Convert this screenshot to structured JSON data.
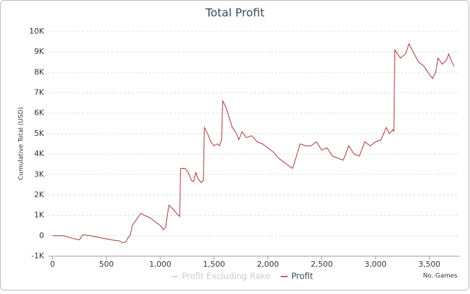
{
  "chart_data": {
    "type": "line",
    "title": "Total Profit",
    "ylabel": "Cumulative Total (USD)",
    "xlabel": "No. Games",
    "xlim": [
      -40,
      3780
    ],
    "ylim": [
      -1000,
      10000
    ],
    "xticks": [
      0,
      500,
      {
        "value": 1000,
        "label": "1,000"
      },
      {
        "value": 1500,
        "label": "1,500"
      },
      {
        "value": 2000,
        "label": "2,000"
      },
      {
        "value": 2500,
        "label": "2,500"
      },
      {
        "value": 3000,
        "label": "3,000"
      },
      {
        "value": 3500,
        "label": "3,500"
      }
    ],
    "yticks": [
      {
        "value": -1000,
        "label": "-1K"
      },
      0,
      {
        "value": 1000,
        "label": "1K"
      },
      {
        "value": 2000,
        "label": "2K"
      },
      {
        "value": 3000,
        "label": "3K"
      },
      {
        "value": 4000,
        "label": "4K"
      },
      {
        "value": 5000,
        "label": "5K"
      },
      {
        "value": 6000,
        "label": "6K"
      },
      {
        "value": 7000,
        "label": "7K"
      },
      {
        "value": 8000,
        "label": "8K"
      },
      {
        "value": 9000,
        "label": "9K"
      },
      {
        "value": 10000,
        "label": "10K"
      }
    ],
    "grid": true,
    "hidden_series": [
      {
        "name": "Profit Excluding Rake",
        "color": "#cccccc"
      }
    ],
    "x": [
      0,
      100,
      200,
      250,
      280,
      350,
      450,
      550,
      620,
      650,
      680,
      700,
      720,
      740,
      780,
      820,
      850,
      900,
      950,
      1000,
      1030,
      1050,
      1080,
      1120,
      1150,
      1180,
      1190,
      1230,
      1260,
      1290,
      1310,
      1330,
      1350,
      1380,
      1400,
      1410,
      1440,
      1470,
      1500,
      1530,
      1550,
      1570,
      1580,
      1610,
      1640,
      1670,
      1700,
      1730,
      1760,
      1800,
      1850,
      1900,
      1950,
      2000,
      2050,
      2100,
      2150,
      2200,
      2230,
      2260,
      2300,
      2350,
      2400,
      2450,
      2500,
      2550,
      2600,
      2650,
      2700,
      2750,
      2800,
      2850,
      2900,
      2950,
      3000,
      3050,
      3100,
      3130,
      3160,
      3170,
      3180,
      3230,
      3280,
      3310,
      3350,
      3400,
      3450,
      3500,
      3530,
      3560,
      3580,
      3620,
      3660,
      3680,
      3710,
      3730
    ],
    "series": [
      {
        "name": "Profit",
        "color": "#a83232",
        "values": [
          0,
          0,
          -150,
          -200,
          50,
          0,
          -100,
          -200,
          -250,
          -350,
          -300,
          -100,
          0,
          500,
          800,
          1100,
          1000,
          900,
          700,
          500,
          300,
          400,
          1500,
          1300,
          1100,
          950,
          3300,
          3300,
          3100,
          2700,
          2650,
          3100,
          2800,
          2600,
          2700,
          5300,
          5000,
          4600,
          4400,
          4500,
          4400,
          4700,
          6600,
          6300,
          5800,
          5300,
          5100,
          4700,
          5100,
          4800,
          4900,
          4600,
          4500,
          4300,
          4100,
          3800,
          3600,
          3400,
          3300,
          3800,
          4500,
          4400,
          4400,
          4600,
          4200,
          4300,
          3900,
          3800,
          3700,
          4400,
          4000,
          3900,
          4600,
          4400,
          4600,
          4700,
          5300,
          5000,
          5200,
          5100,
          9100,
          8700,
          8900,
          9400,
          9000,
          8500,
          8300,
          7900,
          7700,
          8000,
          8700,
          8400,
          8600,
          8900,
          8500,
          8300
        ]
      }
    ]
  }
}
